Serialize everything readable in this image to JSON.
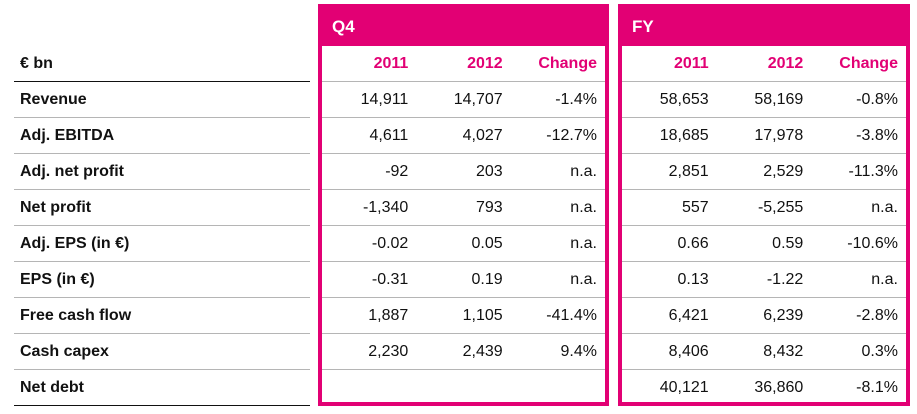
{
  "unit_label": "€ bn",
  "rows": [
    "Revenue",
    "Adj. EBITDA",
    "Adj. net profit",
    "Net profit",
    "Adj. EPS (in €)",
    "EPS (in €)",
    "Free cash flow",
    "Cash capex",
    "Net debt"
  ],
  "accent_color": "#e20074",
  "q4": {
    "title": "Q4",
    "headers": [
      "2011",
      "2012",
      "Change"
    ],
    "values": [
      [
        "14,911",
        "14,707",
        "-1.4%"
      ],
      [
        "4,611",
        "4,027",
        "-12.7%"
      ],
      [
        "-92",
        "203",
        "n.a."
      ],
      [
        "-1,340",
        "793",
        "n.a."
      ],
      [
        "-0.02",
        "0.05",
        "n.a."
      ],
      [
        "-0.31",
        "0.19",
        "n.a."
      ],
      [
        "1,887",
        "1,105",
        "-41.4%"
      ],
      [
        "2,230",
        "2,439",
        "9.4%"
      ],
      [
        "",
        "",
        ""
      ]
    ]
  },
  "fy": {
    "title": "FY",
    "headers": [
      "2011",
      "2012",
      "Change"
    ],
    "values": [
      [
        "58,653",
        "58,169",
        "-0.8%"
      ],
      [
        "18,685",
        "17,978",
        "-3.8%"
      ],
      [
        "2,851",
        "2,529",
        "-11.3%"
      ],
      [
        "557",
        "-5,255",
        "n.a."
      ],
      [
        "0.66",
        "0.59",
        "-10.6%"
      ],
      [
        "0.13",
        "-1.22",
        "n.a."
      ],
      [
        "6,421",
        "6,239",
        "-2.8%"
      ],
      [
        "8,406",
        "8,432",
        "0.3%"
      ],
      [
        "40,121",
        "36,860",
        "-8.1%"
      ]
    ]
  }
}
